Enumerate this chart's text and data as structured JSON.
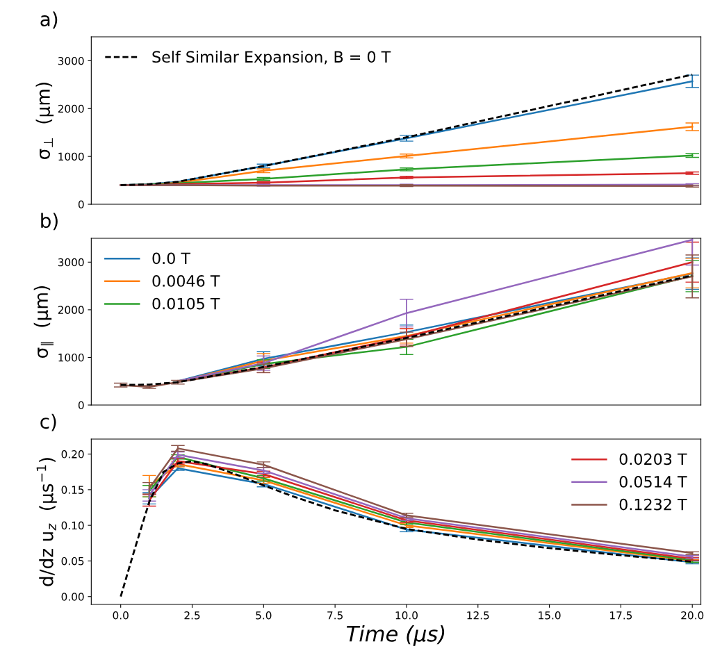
{
  "chart_data": [
    {
      "type": "line",
      "title": "a)",
      "ylabel": "σ$_{⊥}$  (μm)",
      "x": [
        0,
        1,
        2,
        5,
        10,
        20
      ],
      "xlim": [
        -1.03,
        20.3
      ],
      "ylim": [
        0,
        3500
      ],
      "yticks": [
        0,
        1000,
        2000,
        3000
      ],
      "tick_labels": "y",
      "legend": "top left",
      "grid": false,
      "marker": "none",
      "series": [
        {
          "color": "#1f77b4",
          "values": [
            400,
            420,
            470,
            800,
            1380,
            2570
          ],
          "errors": [
            null,
            null,
            null,
            40,
            60,
            130
          ]
        },
        {
          "color": "#ff7f0e",
          "values": [
            400,
            410,
            450,
            700,
            1010,
            1620
          ],
          "errors": [
            null,
            null,
            null,
            40,
            40,
            80
          ]
        },
        {
          "color": "#2ca02c",
          "values": [
            400,
            410,
            440,
            530,
            730,
            1020
          ],
          "errors": [
            null,
            null,
            null,
            30,
            30,
            40
          ]
        },
        {
          "color": "#d62728",
          "values": [
            400,
            400,
            420,
            450,
            560,
            650
          ],
          "errors": [
            null,
            null,
            null,
            25,
            25,
            25
          ]
        },
        {
          "color": "#9467bd",
          "values": [
            400,
            400,
            400,
            400,
            400,
            410
          ],
          "errors": [
            null,
            null,
            null,
            20,
            20,
            20
          ]
        },
        {
          "color": "#8c564b",
          "values": [
            400,
            400,
            400,
            390,
            390,
            380
          ],
          "errors": [
            null,
            null,
            null,
            null,
            20,
            20
          ]
        },
        {
          "name": "Self Similar Expansion, B = 0 T",
          "color": "#000000",
          "line_style": "dashed",
          "values": [
            400,
            420,
            470,
            800,
            1400,
            2710
          ]
        }
      ]
    },
    {
      "type": "line",
      "title": "b)",
      "ylabel": "σ$_{∥}$  (μm)",
      "x": [
        0,
        1,
        2,
        5,
        10,
        20
      ],
      "xlim": [
        -1.03,
        20.3
      ],
      "ylim": [
        0,
        3500
      ],
      "yticks": [
        0,
        1000,
        2000,
        3000
      ],
      "tick_labels": "y",
      "legend": "top left",
      "grid": false,
      "marker": "none",
      "series": [
        {
          "name": "0.0 T",
          "color": "#1f77b4",
          "values": [
            null,
            null,
            500,
            970,
            1530,
            2760
          ],
          "errors": [
            null,
            null,
            null,
            150,
            150,
            330
          ]
        },
        {
          "name": "0.0046 T",
          "color": "#ff7f0e",
          "values": [
            null,
            null,
            490,
            930,
            1450,
            2770
          ],
          "errors": [
            null,
            null,
            null,
            150,
            150,
            310
          ]
        },
        {
          "name": "0.0105 T",
          "color": "#2ca02c",
          "values": [
            null,
            null,
            490,
            860,
            1220,
            2710
          ],
          "errors": [
            null,
            null,
            null,
            90,
            160,
            330
          ]
        },
        {
          "color": "#d62728",
          "values": [
            null,
            null,
            490,
            790,
            1430,
            3000
          ],
          "errors": [
            null,
            null,
            null,
            110,
            170,
            420
          ]
        },
        {
          "color": "#9467bd",
          "values": [
            null,
            null,
            500,
            880,
            1930,
            3470
          ],
          "errors": [
            null,
            null,
            null,
            150,
            290,
            530
          ]
        },
        {
          "color": "#8c564b",
          "values": [
            420,
            380,
            480,
            770,
            1380,
            2700
          ],
          "errors": [
            40,
            30,
            40,
            90,
            150,
            450
          ]
        },
        {
          "color": "#000000",
          "line_style": "dashed",
          "values": [
            420,
            430,
            480,
            800,
            1410,
            2720
          ]
        }
      ]
    },
    {
      "type": "line",
      "title": "c)",
      "xlabel": "Time (μs)",
      "ylabel": "d/dz u$_{z}$  (μs$^{−1}$)",
      "x": [
        1,
        2,
        5,
        10,
        20
      ],
      "xlim": [
        -1.03,
        20.3
      ],
      "ylim": [
        -0.011,
        0.221
      ],
      "xticks": [
        {
          "value": 0,
          "label": "0.0"
        },
        {
          "value": 2.5,
          "label": "2.5"
        },
        {
          "value": 5,
          "label": "5.0"
        },
        {
          "value": 7.5,
          "label": "7.5"
        },
        {
          "value": 10,
          "label": "10.0"
        },
        {
          "value": 12.5,
          "label": "12.5"
        },
        {
          "value": 15,
          "label": "15.0"
        },
        {
          "value": 17.5,
          "label": "17.5"
        },
        {
          "value": 20,
          "label": "20.0"
        }
      ],
      "yticks": [
        {
          "value": 0,
          "label": "0.00"
        },
        {
          "value": 0.05,
          "label": "0.05"
        },
        {
          "value": 0.1,
          "label": "0.10"
        },
        {
          "value": 0.15,
          "label": "0.15"
        },
        {
          "value": 0.2,
          "label": "0.20"
        }
      ],
      "legend": "top right",
      "grid": false,
      "marker": "none",
      "series": [
        {
          "color": "#1f77b4",
          "values": [
            0.138,
            0.18,
            0.158,
            0.094,
            0.048
          ],
          "errors": [
            0.008,
            0.003,
            0.004,
            0.003,
            0.002
          ]
        },
        {
          "color": "#ff7f0e",
          "values": [
            0.155,
            0.186,
            0.163,
            0.1,
            0.05
          ],
          "errors": [
            0.015,
            0.004,
            0.004,
            0.003,
            0.002
          ]
        },
        {
          "color": "#2ca02c",
          "values": [
            0.148,
            0.196,
            0.166,
            0.104,
            0.051
          ],
          "errors": [
            0.008,
            0.003,
            0.004,
            0.003,
            0.003
          ]
        },
        {
          "name": "0.0203 T",
          "color": "#d62728",
          "values": [
            0.135,
            0.19,
            0.172,
            0.107,
            0.053
          ],
          "errors": [
            0.008,
            0.004,
            0.004,
            0.003,
            0.002
          ]
        },
        {
          "name": "0.0514 T",
          "color": "#9467bd",
          "values": [
            0.142,
            0.199,
            0.177,
            0.11,
            0.056
          ],
          "errors": [
            0.008,
            0.004,
            0.004,
            0.003,
            0.002
          ]
        },
        {
          "name": "0.1232 T",
          "color": "#8c564b",
          "values": [
            0.152,
            0.208,
            0.185,
            0.114,
            0.061
          ],
          "errors": [
            0.008,
            0.004,
            0.004,
            0.003,
            0.002
          ]
        },
        {
          "color": "#000000",
          "line_style": "dashed",
          "x": [
            0,
            0.5,
            1,
            1.5,
            2,
            2.5,
            3,
            4,
            5,
            6,
            7.5,
            10,
            12.5,
            15,
            17.5,
            20
          ],
          "values": [
            0,
            0.068,
            0.133,
            0.175,
            0.187,
            0.19,
            0.186,
            0.172,
            0.156,
            0.141,
            0.121,
            0.095,
            0.08,
            0.068,
            0.058,
            0.049
          ]
        }
      ]
    }
  ]
}
